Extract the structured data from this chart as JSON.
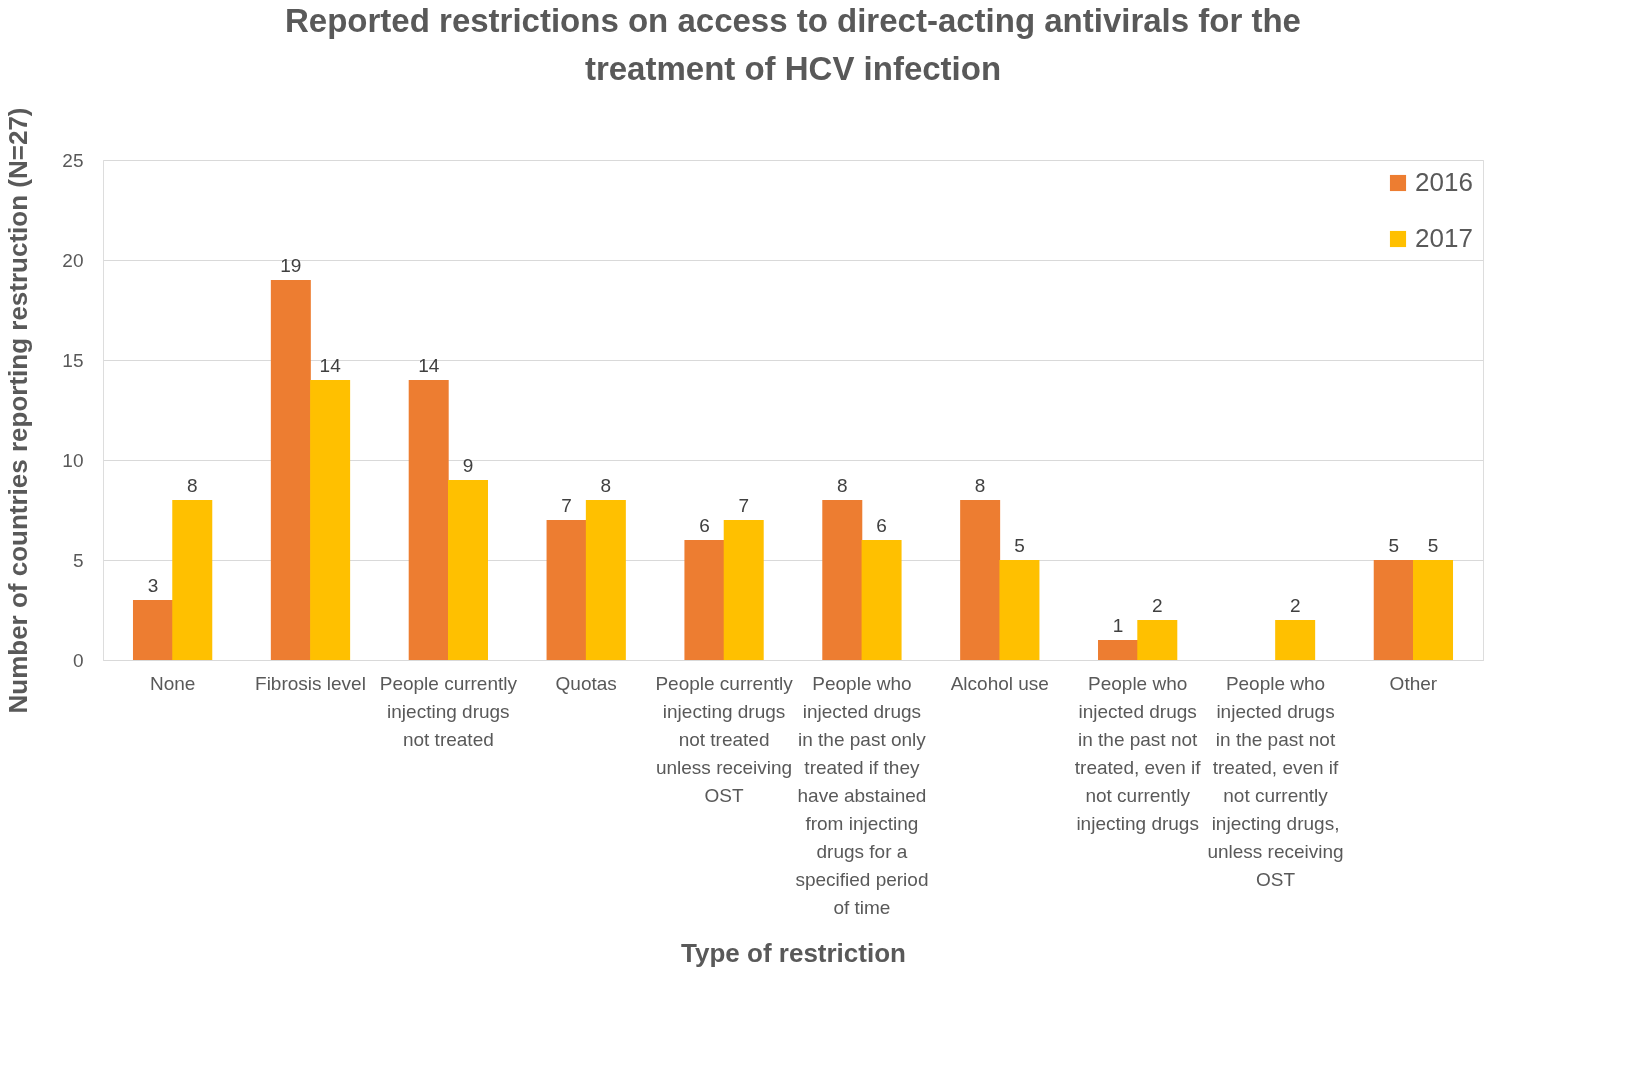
{
  "chart_data": {
    "type": "bar",
    "title": "Reported restrictions on access to direct-acting antivirals for the treatment of HCV infection",
    "xlabel": "Type of restriction",
    "ylabel": "Number of countries reporting restruction (N=27)",
    "categories": [
      "None",
      "Fibrosis level",
      "People currently injecting drugs not treated",
      "Quotas",
      "People currently injecting drugs not treated unless receiving OST",
      "People who injected drugs in the past only treated if they have abstained from injecting drugs for a specified period of time",
      "Alcohol use",
      "People who injected drugs in the past not treated, even if not currently injecting drugs",
      "People who injected drugs in the past not treated, even if not currently injecting drugs, unless receiving OST",
      "Other"
    ],
    "series": [
      {
        "name": "2016",
        "color": "#ed7d31",
        "values": [
          3,
          19,
          14,
          7,
          6,
          8,
          8,
          1,
          null,
          5
        ]
      },
      {
        "name": "2017",
        "color": "#ffc000",
        "values": [
          8,
          14,
          9,
          8,
          7,
          6,
          5,
          2,
          2,
          5
        ]
      }
    ],
    "ylim": [
      0,
      25
    ],
    "yticks": [
      0,
      5,
      10,
      15,
      20,
      25
    ],
    "grid": "y",
    "legend": "top right",
    "data_labels": true
  }
}
